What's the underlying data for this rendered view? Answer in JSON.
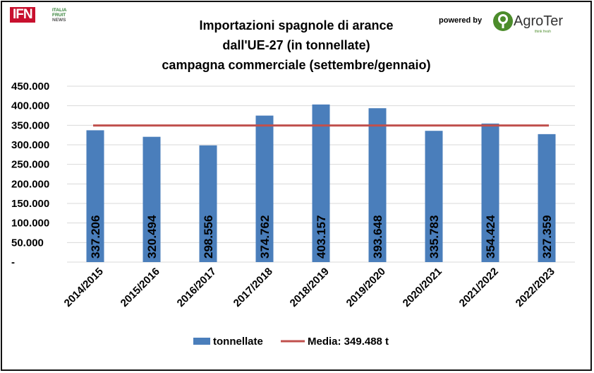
{
  "logo": {
    "ifn": "IFN",
    "lines": [
      "ITALIA",
      "FRUIT",
      "NEWS"
    ]
  },
  "powered_by": "powered by",
  "brand": {
    "name": "AgroTer",
    "tagline": "think fresh"
  },
  "colors": {
    "bar": "#4a7ebb",
    "line": "#c0504d",
    "ifn_red": "#c8102e",
    "brand_green": "#4c8c2b"
  },
  "chart_data": {
    "type": "bar",
    "title": [
      "Importazioni spagnole di arance",
      "dall'UE-27 (in tonnellate)",
      "campagna commerciale (settembre/gennaio)"
    ],
    "categories": [
      "2014/2015",
      "2015/2016",
      "2016/2017",
      "2017/2018",
      "2018/2019",
      "2019/2020",
      "2020/2021",
      "2021/2022",
      "2022/2023"
    ],
    "series": [
      {
        "name": "tonnellate",
        "type": "bar",
        "values": [
          337206,
          320494,
          298556,
          374762,
          403157,
          393648,
          335783,
          354424,
          327359
        ],
        "labels": [
          "337.206",
          "320.494",
          "298.556",
          "374.762",
          "403.157",
          "393.648",
          "335.783",
          "354.424",
          "327.359"
        ]
      },
      {
        "name": "Media: 349.488 t",
        "type": "line",
        "value": 349488
      }
    ],
    "ylim": [
      0,
      450000
    ],
    "yticks": [
      0,
      50000,
      100000,
      150000,
      200000,
      250000,
      300000,
      350000,
      400000,
      450000
    ],
    "ytick_labels": [
      "-",
      "50.000",
      "100.000",
      "150.000",
      "200.000",
      "250.000",
      "300.000",
      "350.000",
      "400.000",
      "450.000"
    ],
    "xlabel": "",
    "ylabel": "",
    "grid": true,
    "legend": "bottom"
  }
}
